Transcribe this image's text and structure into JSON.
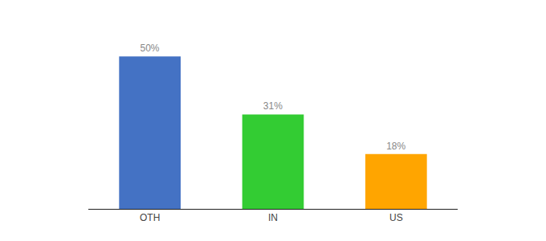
{
  "chart_data": {
    "type": "bar",
    "categories": [
      "OTH",
      "IN",
      "US"
    ],
    "values": [
      50,
      31,
      18
    ],
    "value_labels": [
      "50%",
      "31%",
      "18%"
    ],
    "data_labels": true,
    "colors": [
      "#4472C4",
      "#33CC33",
      "#FFA500"
    ],
    "ylim": [
      0,
      58
    ],
    "tick_labels": "x",
    "grid": false
  }
}
